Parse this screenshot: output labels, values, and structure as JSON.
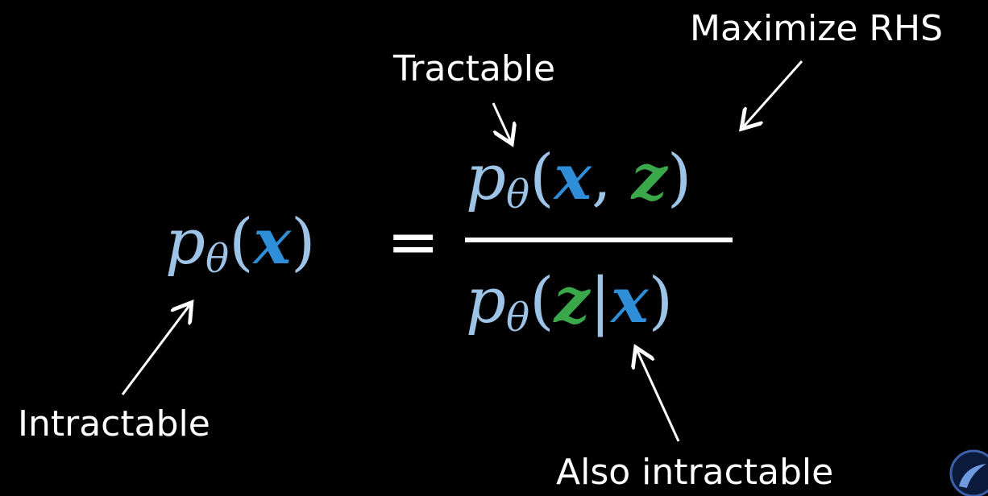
{
  "labels": {
    "tractable": "Tractable",
    "maximize": "Maximize RHS",
    "intractable": "Intractable",
    "also_intractable": "Also intractable"
  },
  "equation": {
    "p": "p",
    "theta": "θ",
    "open": "(",
    "close": ")",
    "x": "x",
    "z": "z",
    "comma": ",",
    "bar": "|",
    "equals": "="
  },
  "colors": {
    "background": "#000000",
    "p_color": "#9dc3e6",
    "x_color": "#2e8fd8",
    "z_color": "#3aa84a",
    "text": "#ffffff"
  },
  "icons": {
    "corner_logo": "channel-logo-icon"
  }
}
